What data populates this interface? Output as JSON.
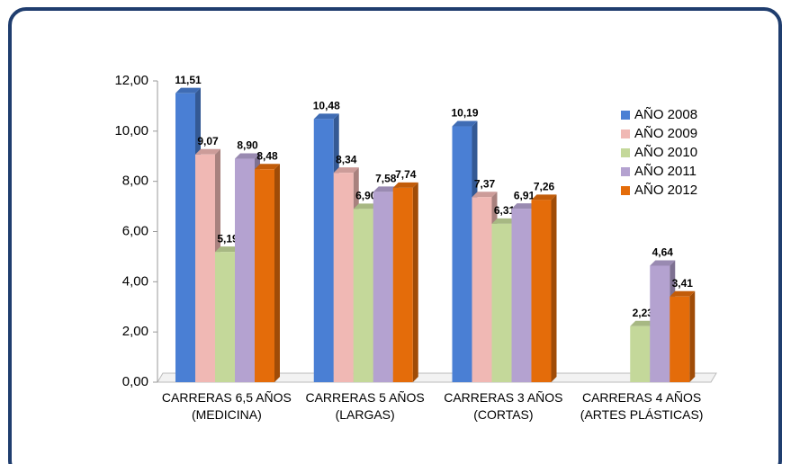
{
  "chart_data": {
    "type": "bar",
    "categories": [
      "CARRERAS 6,5 AÑOS (MEDICINA)",
      "CARRERAS 5 AÑOS (LARGAS)",
      "CARRERAS 3 AÑOS (CORTAS)",
      "CARRERAS 4 AÑOS (ARTES PLÁSTICAS)"
    ],
    "series": [
      {
        "name": "AÑO 2008",
        "color": "#4a7fd4",
        "values": [
          11.51,
          10.48,
          10.19,
          null
        ],
        "value_labels": [
          "11,51",
          "10,48",
          "10,19",
          null
        ]
      },
      {
        "name": "AÑO 2009",
        "color": "#f0b8b4",
        "values": [
          9.07,
          8.34,
          7.37,
          null
        ],
        "value_labels": [
          "9,07",
          "8,34",
          "7,37",
          null
        ]
      },
      {
        "name": "AÑO 2010",
        "color": "#c4d89a",
        "values": [
          5.19,
          6.9,
          6.31,
          2.23
        ],
        "value_labels": [
          "5,19",
          "6,90",
          "6,31",
          "2,23"
        ]
      },
      {
        "name": "AÑO 2011",
        "color": "#b4a2d0",
        "values": [
          8.9,
          7.58,
          6.91,
          4.64
        ],
        "value_labels": [
          "8,90",
          "7,58",
          "6,91",
          "4,64"
        ]
      },
      {
        "name": "AÑO 2012",
        "color": "#e46c0a",
        "values": [
          8.48,
          7.74,
          7.26,
          3.41
        ],
        "value_labels": [
          "8,48",
          "7,74",
          "7,26",
          "3,41"
        ]
      }
    ],
    "ylim": [
      0,
      12
    ],
    "yticks": [
      {
        "value": 0,
        "label": "0,00"
      },
      {
        "value": 2,
        "label": "2,00"
      },
      {
        "value": 4,
        "label": "4,00"
      },
      {
        "value": 6,
        "label": "6,00"
      },
      {
        "value": 8,
        "label": "8,00"
      },
      {
        "value": 10,
        "label": "10,00"
      },
      {
        "value": 12,
        "label": "12,00"
      }
    ],
    "legend": "right"
  }
}
